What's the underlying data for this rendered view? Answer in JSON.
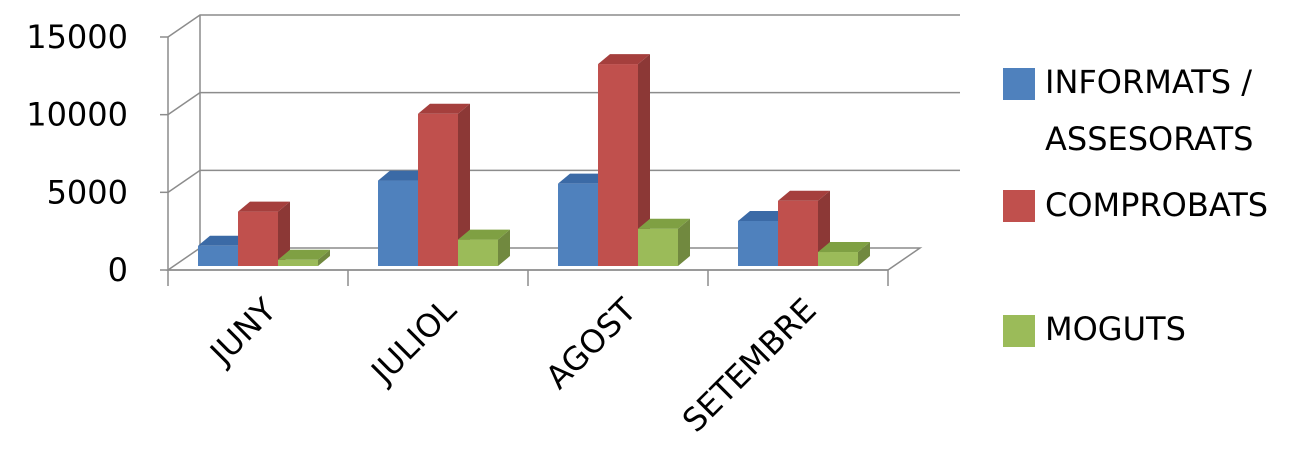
{
  "chart_data": {
    "type": "bar",
    "title": "",
    "xlabel": "",
    "ylabel": "",
    "categories": [
      "JUNY",
      "JULIOL",
      "AGOST",
      "SETEMBRE"
    ],
    "yticks": [
      "0",
      "5000",
      "10000",
      "15000"
    ],
    "ylim": [
      0,
      15000
    ],
    "series": [
      {
        "name_lines": [
          "INFORMATS /",
          "ASSESORATS"
        ],
        "values": [
          1300,
          5500,
          5300,
          2900
        ],
        "color": "#4f81bd",
        "side_color": "#385d8a",
        "top_color": "#3b6aa6"
      },
      {
        "name_lines": [
          "COMPROBATS"
        ],
        "values": [
          3500,
          9800,
          13000,
          4200
        ],
        "color": "#c0504d",
        "side_color": "#8c3836",
        "top_color": "#a53f3d"
      },
      {
        "name_lines": [
          "MOGUTS"
        ],
        "values": [
          400,
          1700,
          2400,
          900
        ],
        "color": "#9bbb59",
        "side_color": "#71893f",
        "top_color": "#7fa043"
      }
    ],
    "grid": true,
    "legend_position": "right"
  }
}
